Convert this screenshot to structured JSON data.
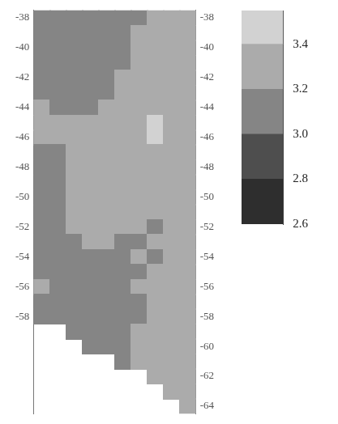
{
  "chart_data": {
    "type": "heatmap",
    "y": [
      -38,
      -39,
      -40,
      -41,
      -42,
      -43,
      -44,
      -45,
      -46,
      -47,
      -48,
      -49,
      -50,
      -51,
      -52,
      -53,
      -54,
      -55,
      -56,
      -57,
      -58,
      -59,
      -60,
      -61,
      -62,
      -63,
      -64
    ],
    "cells": [
      [
        3.1,
        3.1,
        3.1,
        3.1,
        3.1,
        3.1,
        3.1,
        3.3,
        3.3,
        3.3
      ],
      [
        3.1,
        3.1,
        3.1,
        3.1,
        3.1,
        3.1,
        3.2,
        3.3,
        3.3,
        3.3
      ],
      [
        3.1,
        3.1,
        3.1,
        3.1,
        3.1,
        3.1,
        3.3,
        3.3,
        3.3,
        3.3
      ],
      [
        3.1,
        3.1,
        3.1,
        3.1,
        3.1,
        3.1,
        3.3,
        3.3,
        3.3,
        3.3
      ],
      [
        3.1,
        3.1,
        3.1,
        3.1,
        3.1,
        3.2,
        3.3,
        3.3,
        3.3,
        3.3
      ],
      [
        3.1,
        3.1,
        3.1,
        3.1,
        3.1,
        3.3,
        3.3,
        3.3,
        3.3,
        3.3
      ],
      [
        3.2,
        3.1,
        3.1,
        3.1,
        3.2,
        3.3,
        3.3,
        3.3,
        3.3,
        3.3
      ],
      [
        3.2,
        3.2,
        3.2,
        3.2,
        3.3,
        3.3,
        3.3,
        3.5,
        3.3,
        3.3
      ],
      [
        3.2,
        3.2,
        3.2,
        3.3,
        3.3,
        3.3,
        3.3,
        3.5,
        3.3,
        3.3
      ],
      [
        3.1,
        3.1,
        3.2,
        3.3,
        3.3,
        3.3,
        3.3,
        3.3,
        3.3,
        3.3
      ],
      [
        3.0,
        3.1,
        3.2,
        3.2,
        3.3,
        3.3,
        3.2,
        3.2,
        3.3,
        3.3
      ],
      [
        3.0,
        3.1,
        3.2,
        3.2,
        3.3,
        3.3,
        3.3,
        3.2,
        3.3,
        3.3
      ],
      [
        3.0,
        3.1,
        3.2,
        3.3,
        3.3,
        3.3,
        3.3,
        3.2,
        3.3,
        3.3
      ],
      [
        3.1,
        3.1,
        3.2,
        3.3,
        3.3,
        3.3,
        3.2,
        3.2,
        3.3,
        3.3
      ],
      [
        3.1,
        3.1,
        3.2,
        3.2,
        3.3,
        3.2,
        3.2,
        3.1,
        3.3,
        3.3
      ],
      [
        3.1,
        3.1,
        3.1,
        3.2,
        3.2,
        3.1,
        3.1,
        3.2,
        3.3,
        3.3
      ],
      [
        3.1,
        3.1,
        3.1,
        3.1,
        3.1,
        3.1,
        3.2,
        3.1,
        3.3,
        3.3
      ],
      [
        3.1,
        3.1,
        3.1,
        3.1,
        3.1,
        3.1,
        3.1,
        3.2,
        3.3,
        3.3
      ],
      [
        3.2,
        3.1,
        3.1,
        3.1,
        3.1,
        3.1,
        3.2,
        3.2,
        3.3,
        3.3
      ],
      [
        3.1,
        3.1,
        3.1,
        3.1,
        3.1,
        3.1,
        3.1,
        3.2,
        3.3,
        3.3
      ],
      [
        3.1,
        3.1,
        3.1,
        3.1,
        3.1,
        3.1,
        3.1,
        3.2,
        3.3,
        3.3
      ],
      [
        null,
        null,
        3.1,
        3.1,
        3.1,
        3.1,
        3.2,
        3.2,
        3.3,
        3.3
      ],
      [
        null,
        null,
        null,
        3.1,
        3.1,
        3.1,
        3.2,
        3.3,
        3.2,
        3.3
      ],
      [
        null,
        null,
        null,
        null,
        null,
        3.1,
        3.2,
        3.3,
        3.2,
        3.3
      ],
      [
        null,
        null,
        null,
        null,
        null,
        null,
        null,
        3.3,
        3.2,
        3.3
      ],
      [
        null,
        null,
        null,
        null,
        null,
        null,
        null,
        null,
        3.2,
        3.3
      ],
      [
        null,
        null,
        null,
        null,
        null,
        null,
        null,
        null,
        null,
        3.3
      ]
    ],
    "ylim": [
      -64.5,
      -37.5
    ],
    "yticks": [
      -38,
      -40,
      -42,
      -44,
      -46,
      -48,
      -50,
      -52,
      -54,
      -56,
      -58
    ],
    "y2lim": [
      -64.5,
      -37.5
    ],
    "y2ticks": [
      -38,
      -40,
      -42,
      -44,
      -46,
      -48,
      -50,
      -52,
      -54,
      -56,
      -58,
      -60,
      -62,
      -64
    ],
    "tick_labels": "y",
    "grid": false,
    "colorbar": {
      "range": [
        2.6,
        3.55
      ],
      "ticks": [
        {
          "value": 2.6,
          "label": "2.6"
        },
        {
          "value": 2.8,
          "label": "2.8"
        },
        {
          "value": 3,
          "label": "3.0"
        },
        {
          "value": 3.2,
          "label": "3.2"
        },
        {
          "value": 3.4,
          "label": "3.4"
        }
      ],
      "colors": [
        "#2e2e2e",
        "#4e4e4e",
        "#858585",
        "#ababab",
        "#d2d2d2"
      ]
    }
  }
}
